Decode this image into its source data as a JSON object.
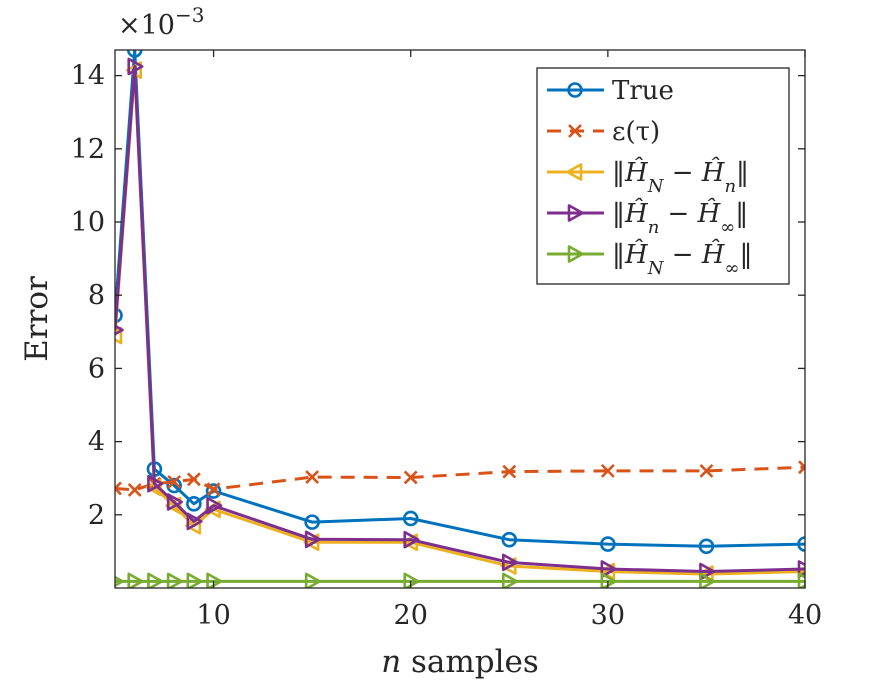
{
  "chart_data": {
    "type": "line",
    "xlabel_var": "n",
    "xlabel_text": "samples",
    "ylabel": "Error",
    "y_multiplier": "×10",
    "y_multiplier_exponent": "−3",
    "xlim": [
      5,
      40
    ],
    "ylim": [
      0,
      14.7
    ],
    "x_ticks": [
      10,
      20,
      30,
      40
    ],
    "x_tick_labels": [
      "10",
      "20",
      "30",
      "40"
    ],
    "y_ticks": [
      2,
      4,
      6,
      8,
      10,
      12,
      14
    ],
    "y_tick_labels": [
      "2",
      "4",
      "6",
      "8",
      "10",
      "12",
      "14"
    ],
    "grid": false,
    "legend_position": "top-right",
    "series": [
      {
        "name": "True",
        "label_html": "True",
        "color": "#0072BD",
        "dash": "solid",
        "marker": "circle",
        "x": [
          5,
          6,
          7,
          8,
          9,
          10,
          15,
          20,
          25,
          30,
          35,
          40
        ],
        "y": [
          7.45,
          14.7,
          3.25,
          2.8,
          2.3,
          2.65,
          1.8,
          1.9,
          1.32,
          1.2,
          1.14,
          1.2
        ]
      },
      {
        "name": "ε(τ)",
        "label_html": "ε(τ)",
        "color": "#D95319",
        "dash": "dashed",
        "marker": "x",
        "x": [
          5,
          6,
          7,
          8,
          9,
          10,
          15,
          20,
          25,
          30,
          35,
          40
        ],
        "y": [
          2.72,
          2.68,
          2.85,
          2.9,
          2.97,
          2.7,
          3.03,
          3.02,
          3.18,
          3.2,
          3.2,
          3.3
        ]
      },
      {
        "name": "‖Ĥ_N − Ĥ_n‖",
        "label_html": "‖<tspan font-style='italic'>Ĥ</tspan><tspan baseline-shift='sub' font-size='18' font-style='italic'>N</tspan> − <tspan font-style='italic'>Ĥ</tspan><tspan baseline-shift='sub' font-size='18' font-style='italic'>n</tspan>‖",
        "color": "#EDB120",
        "dash": "solid",
        "marker": "triangle-left",
        "x": [
          5,
          6,
          7,
          8,
          9,
          10,
          15,
          20,
          25,
          30,
          35,
          40
        ],
        "y": [
          6.9,
          14.15,
          2.75,
          2.25,
          1.7,
          2.15,
          1.25,
          1.25,
          0.6,
          0.45,
          0.38,
          0.45
        ]
      },
      {
        "name": "‖Ĥ_n − Ĥ_∞‖",
        "label_html": "‖<tspan font-style='italic'>Ĥ</tspan><tspan baseline-shift='sub' font-size='18' font-style='italic'>n</tspan> − <tspan font-style='italic'>Ĥ</tspan><tspan baseline-shift='sub' font-size='18'>∞</tspan>‖",
        "color": "#7E2F8E",
        "dash": "solid",
        "marker": "triangle-right",
        "x": [
          5,
          6,
          7,
          8,
          9,
          10,
          15,
          20,
          25,
          30,
          35,
          40
        ],
        "y": [
          7.05,
          14.25,
          2.85,
          2.35,
          1.82,
          2.25,
          1.33,
          1.32,
          0.7,
          0.52,
          0.45,
          0.52
        ]
      },
      {
        "name": "‖Ĥ_N − Ĥ_∞‖",
        "label_html": "‖<tspan font-style='italic'>Ĥ</tspan><tspan baseline-shift='sub' font-size='18' font-style='italic'>N</tspan> − <tspan font-style='italic'>Ĥ</tspan><tspan baseline-shift='sub' font-size='18'>∞</tspan>‖",
        "color": "#77AC30",
        "dash": "solid",
        "marker": "triangle-right",
        "x": [
          5,
          6,
          7,
          8,
          9,
          10,
          15,
          20,
          25,
          30,
          35,
          40
        ],
        "y": [
          0.18,
          0.18,
          0.18,
          0.18,
          0.18,
          0.18,
          0.18,
          0.18,
          0.18,
          0.18,
          0.18,
          0.18
        ]
      }
    ]
  }
}
